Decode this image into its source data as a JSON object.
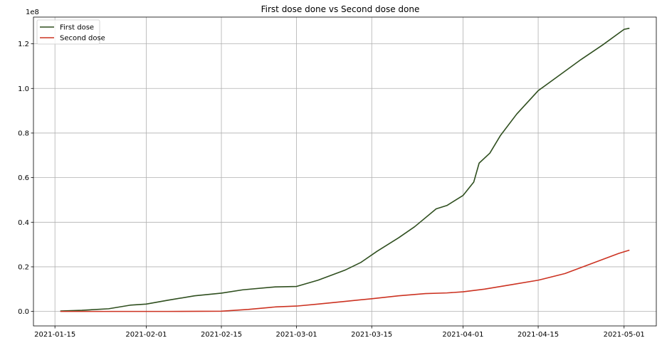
{
  "chart_data": {
    "type": "line",
    "title": "First dose done vs Second dose done",
    "xlabel": "",
    "ylabel": "",
    "y_offset_label": "1e8",
    "y_scale": 100000000,
    "xlim": [
      "2021-01-11",
      "2021-05-07"
    ],
    "ylim": [
      -6500000,
      132000000
    ],
    "grid": true,
    "legend_position": "top-left",
    "x_ticks": [
      "2021-01-15",
      "2021-02-01",
      "2021-02-15",
      "2021-03-01",
      "2021-03-15",
      "2021-04-01",
      "2021-04-15",
      "2021-05-01"
    ],
    "y_ticks": [
      0,
      20000000,
      40000000,
      60000000,
      80000000,
      100000000,
      120000000
    ],
    "y_tick_labels": [
      "0.0",
      "0.2",
      "0.4",
      "0.6",
      "0.8",
      "1.0",
      "1.2"
    ],
    "series": [
      {
        "name": "First dose",
        "color": "#2f4f1f",
        "points": [
          [
            "2021-01-16",
            200000
          ],
          [
            "2021-01-20",
            500000
          ],
          [
            "2021-01-25",
            1200000
          ],
          [
            "2021-01-29",
            2800000
          ],
          [
            "2021-02-01",
            3300000
          ],
          [
            "2021-02-05",
            5000000
          ],
          [
            "2021-02-10",
            7000000
          ],
          [
            "2021-02-15",
            8200000
          ],
          [
            "2021-02-19",
            9700000
          ],
          [
            "2021-02-25",
            11000000
          ],
          [
            "2021-03-01",
            11200000
          ],
          [
            "2021-03-05",
            14000000
          ],
          [
            "2021-03-10",
            18500000
          ],
          [
            "2021-03-13",
            22000000
          ],
          [
            "2021-03-16",
            27000000
          ],
          [
            "2021-03-20",
            33000000
          ],
          [
            "2021-03-23",
            38000000
          ],
          [
            "2021-03-27",
            46000000
          ],
          [
            "2021-03-29",
            47500000
          ],
          [
            "2021-04-01",
            52000000
          ],
          [
            "2021-04-03",
            58000000
          ],
          [
            "2021-04-04",
            66500000
          ],
          [
            "2021-04-06",
            71000000
          ],
          [
            "2021-04-08",
            79000000
          ],
          [
            "2021-04-11",
            88500000
          ],
          [
            "2021-04-15",
            99000000
          ],
          [
            "2021-04-19",
            106000000
          ],
          [
            "2021-04-23",
            113000000
          ],
          [
            "2021-04-27",
            119500000
          ],
          [
            "2021-05-01",
            126500000
          ],
          [
            "2021-05-02",
            127000000
          ]
        ]
      },
      {
        "name": "Second dose",
        "color": "#cc3322",
        "points": [
          [
            "2021-01-16",
            0
          ],
          [
            "2021-01-25",
            0
          ],
          [
            "2021-02-05",
            0
          ],
          [
            "2021-02-15",
            100000
          ],
          [
            "2021-02-20",
            900000
          ],
          [
            "2021-02-25",
            2000000
          ],
          [
            "2021-03-01",
            2400000
          ],
          [
            "2021-03-05",
            3300000
          ],
          [
            "2021-03-10",
            4500000
          ],
          [
            "2021-03-15",
            5700000
          ],
          [
            "2021-03-20",
            7000000
          ],
          [
            "2021-03-25",
            8000000
          ],
          [
            "2021-03-29",
            8300000
          ],
          [
            "2021-04-01",
            8800000
          ],
          [
            "2021-04-05",
            10000000
          ],
          [
            "2021-04-10",
            12000000
          ],
          [
            "2021-04-15",
            14000000
          ],
          [
            "2021-04-20",
            17000000
          ],
          [
            "2021-04-25",
            21500000
          ],
          [
            "2021-04-30",
            26000000
          ],
          [
            "2021-05-02",
            27500000
          ]
        ]
      }
    ]
  }
}
